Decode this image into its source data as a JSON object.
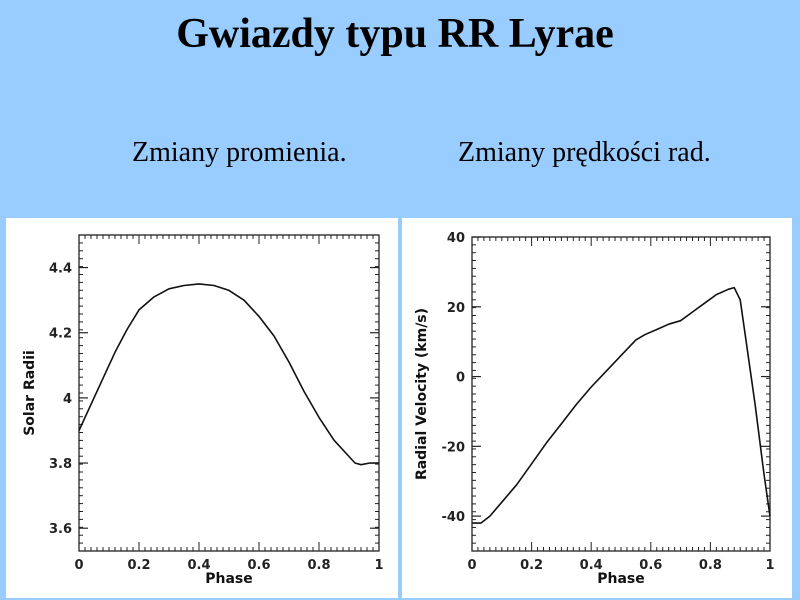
{
  "slide": {
    "title": "Gwiazdy typu RR Lyrae",
    "subtitle_left": "Zmiany promienia.",
    "subtitle_right": "Zmiany prędkości rad."
  },
  "colors": {
    "background": "#99ccff",
    "panel": "#ffffff",
    "curve": "#111111"
  },
  "chart_data": [
    {
      "type": "line",
      "xlabel": "Phase",
      "ylabel": "Solar Radii",
      "xlim": [
        0,
        1
      ],
      "ylim": [
        3.53,
        4.5
      ],
      "xticks": [
        0,
        0.2,
        0.4,
        0.6,
        0.8,
        1
      ],
      "xtick_labels": [
        "0",
        "0.2",
        "0.4",
        "0.6",
        "0.8",
        "1"
      ],
      "yticks": [
        3.6,
        3.8,
        4.0,
        4.2,
        4.4
      ],
      "ytick_labels": [
        "3.6",
        "3.8",
        "4",
        "4.2",
        "4.4"
      ],
      "series": [
        {
          "x": [
            0,
            0.04,
            0.08,
            0.12,
            0.16,
            0.2,
            0.25,
            0.3,
            0.35,
            0.4,
            0.45,
            0.5,
            0.55,
            0.6,
            0.65,
            0.7,
            0.75,
            0.8,
            0.85,
            0.9,
            0.92,
            0.94,
            0.97,
            1.0
          ],
          "y": [
            3.9,
            3.98,
            4.06,
            4.14,
            4.21,
            4.27,
            4.31,
            4.335,
            4.345,
            4.35,
            4.345,
            4.33,
            4.3,
            4.25,
            4.19,
            4.11,
            4.02,
            3.94,
            3.87,
            3.82,
            3.8,
            3.795,
            3.8,
            3.8
          ]
        }
      ]
    },
    {
      "type": "line",
      "xlabel": "Phase",
      "ylabel": "Radial Velocity (km/s)",
      "xlim": [
        0,
        1
      ],
      "ylim": [
        -50,
        40
      ],
      "xticks": [
        0,
        0.2,
        0.4,
        0.6,
        0.8,
        1
      ],
      "xtick_labels": [
        "0",
        "0.2",
        "0.4",
        "0.6",
        "0.8",
        "1"
      ],
      "yticks": [
        -40,
        -20,
        0,
        20,
        40
      ],
      "ytick_labels": [
        "-40",
        "-20",
        "0",
        "20",
        "40"
      ],
      "series": [
        {
          "x": [
            0,
            0.03,
            0.06,
            0.1,
            0.15,
            0.2,
            0.25,
            0.3,
            0.35,
            0.4,
            0.45,
            0.5,
            0.55,
            0.58,
            0.62,
            0.66,
            0.7,
            0.74,
            0.78,
            0.82,
            0.86,
            0.88,
            0.9,
            0.92,
            0.95,
            0.98,
            1.0
          ],
          "y": [
            -42,
            -42,
            -40,
            -36,
            -31,
            -25,
            -19,
            -13.5,
            -8,
            -3,
            1.5,
            6,
            10.5,
            12,
            13.5,
            15,
            16,
            18.5,
            21,
            23.5,
            25,
            25.5,
            22,
            10,
            -8,
            -28,
            -40
          ]
        }
      ]
    }
  ]
}
